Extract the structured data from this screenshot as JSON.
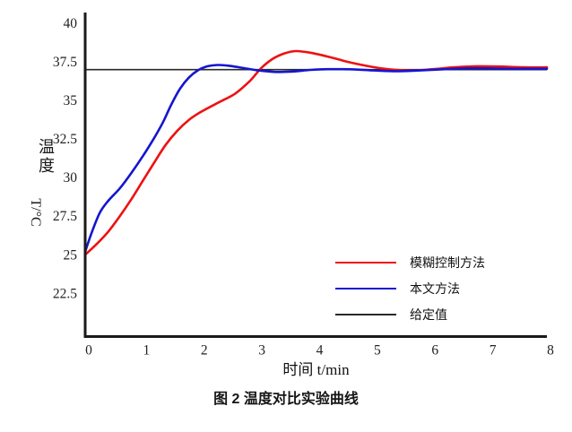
{
  "figure": {
    "caption": "图 2 温度对比实验曲线",
    "background": "#ffffff"
  },
  "chart_data": {
    "type": "line",
    "title": "",
    "xlabel": "时间  t/min",
    "ylabel": "温度 T/°C",
    "ylabel_cjk": "温度",
    "ylabel_unit": "T/°C",
    "xlim": [
      0,
      8
    ],
    "ylim": [
      19.7,
      40.7
    ],
    "xticks": [
      0,
      1,
      2,
      3,
      4,
      5,
      6,
      7,
      8
    ],
    "yticks": [
      40,
      37.5,
      35,
      32.5,
      30,
      27.5,
      25,
      22.5
    ],
    "grid": false,
    "legend_position": "inside lower-right",
    "axis_color": "#1a1a1a",
    "tick_color": "#222222",
    "setpoint": {
      "label": "给定值",
      "value": 37,
      "color": "#2a2a2a"
    },
    "series": [
      {
        "name": "模糊控制方法",
        "color": "#ee1111",
        "points": [
          [
            0,
            25.0
          ],
          [
            0.2,
            25.7
          ],
          [
            0.4,
            26.5
          ],
          [
            0.6,
            27.5
          ],
          [
            0.8,
            28.6
          ],
          [
            1.0,
            29.8
          ],
          [
            1.2,
            31.0
          ],
          [
            1.4,
            32.15
          ],
          [
            1.6,
            33.05
          ],
          [
            1.8,
            33.75
          ],
          [
            2.0,
            34.25
          ],
          [
            2.3,
            34.85
          ],
          [
            2.6,
            35.45
          ],
          [
            2.85,
            36.25
          ],
          [
            3.05,
            37.1
          ],
          [
            3.25,
            37.7
          ],
          [
            3.45,
            38.05
          ],
          [
            3.65,
            38.2
          ],
          [
            3.9,
            38.1
          ],
          [
            4.2,
            37.85
          ],
          [
            4.5,
            37.55
          ],
          [
            4.8,
            37.3
          ],
          [
            5.1,
            37.1
          ],
          [
            5.4,
            36.98
          ],
          [
            5.7,
            36.95
          ],
          [
            6.0,
            37.02
          ],
          [
            6.4,
            37.15
          ],
          [
            6.8,
            37.22
          ],
          [
            7.2,
            37.2
          ],
          [
            7.6,
            37.15
          ],
          [
            8.0,
            37.15
          ]
        ]
      },
      {
        "name": "本文方法",
        "color": "#1515d0",
        "points": [
          [
            0,
            25.2
          ],
          [
            0.1,
            26.3
          ],
          [
            0.25,
            27.7
          ],
          [
            0.4,
            28.5
          ],
          [
            0.6,
            29.3
          ],
          [
            0.8,
            30.3
          ],
          [
            1.0,
            31.4
          ],
          [
            1.2,
            32.6
          ],
          [
            1.35,
            33.6
          ],
          [
            1.5,
            34.8
          ],
          [
            1.65,
            35.8
          ],
          [
            1.8,
            36.5
          ],
          [
            1.95,
            36.95
          ],
          [
            2.1,
            37.2
          ],
          [
            2.3,
            37.3
          ],
          [
            2.5,
            37.25
          ],
          [
            2.75,
            37.1
          ],
          [
            3.0,
            36.95
          ],
          [
            3.3,
            36.85
          ],
          [
            3.6,
            36.88
          ],
          [
            3.9,
            36.98
          ],
          [
            4.2,
            37.03
          ],
          [
            4.6,
            37.02
          ],
          [
            5.0,
            36.95
          ],
          [
            5.4,
            36.9
          ],
          [
            5.8,
            36.95
          ],
          [
            6.2,
            37.02
          ],
          [
            6.6,
            37.08
          ],
          [
            7.0,
            37.08
          ],
          [
            7.4,
            37.05
          ],
          [
            8.0,
            37.05
          ]
        ]
      }
    ]
  },
  "legend": {
    "items": [
      {
        "label": "模糊控制方法",
        "color": "#ee1111"
      },
      {
        "label": "本文方法",
        "color": "#1515d0"
      },
      {
        "label": "给定值",
        "color": "#2a2a2a"
      }
    ]
  }
}
